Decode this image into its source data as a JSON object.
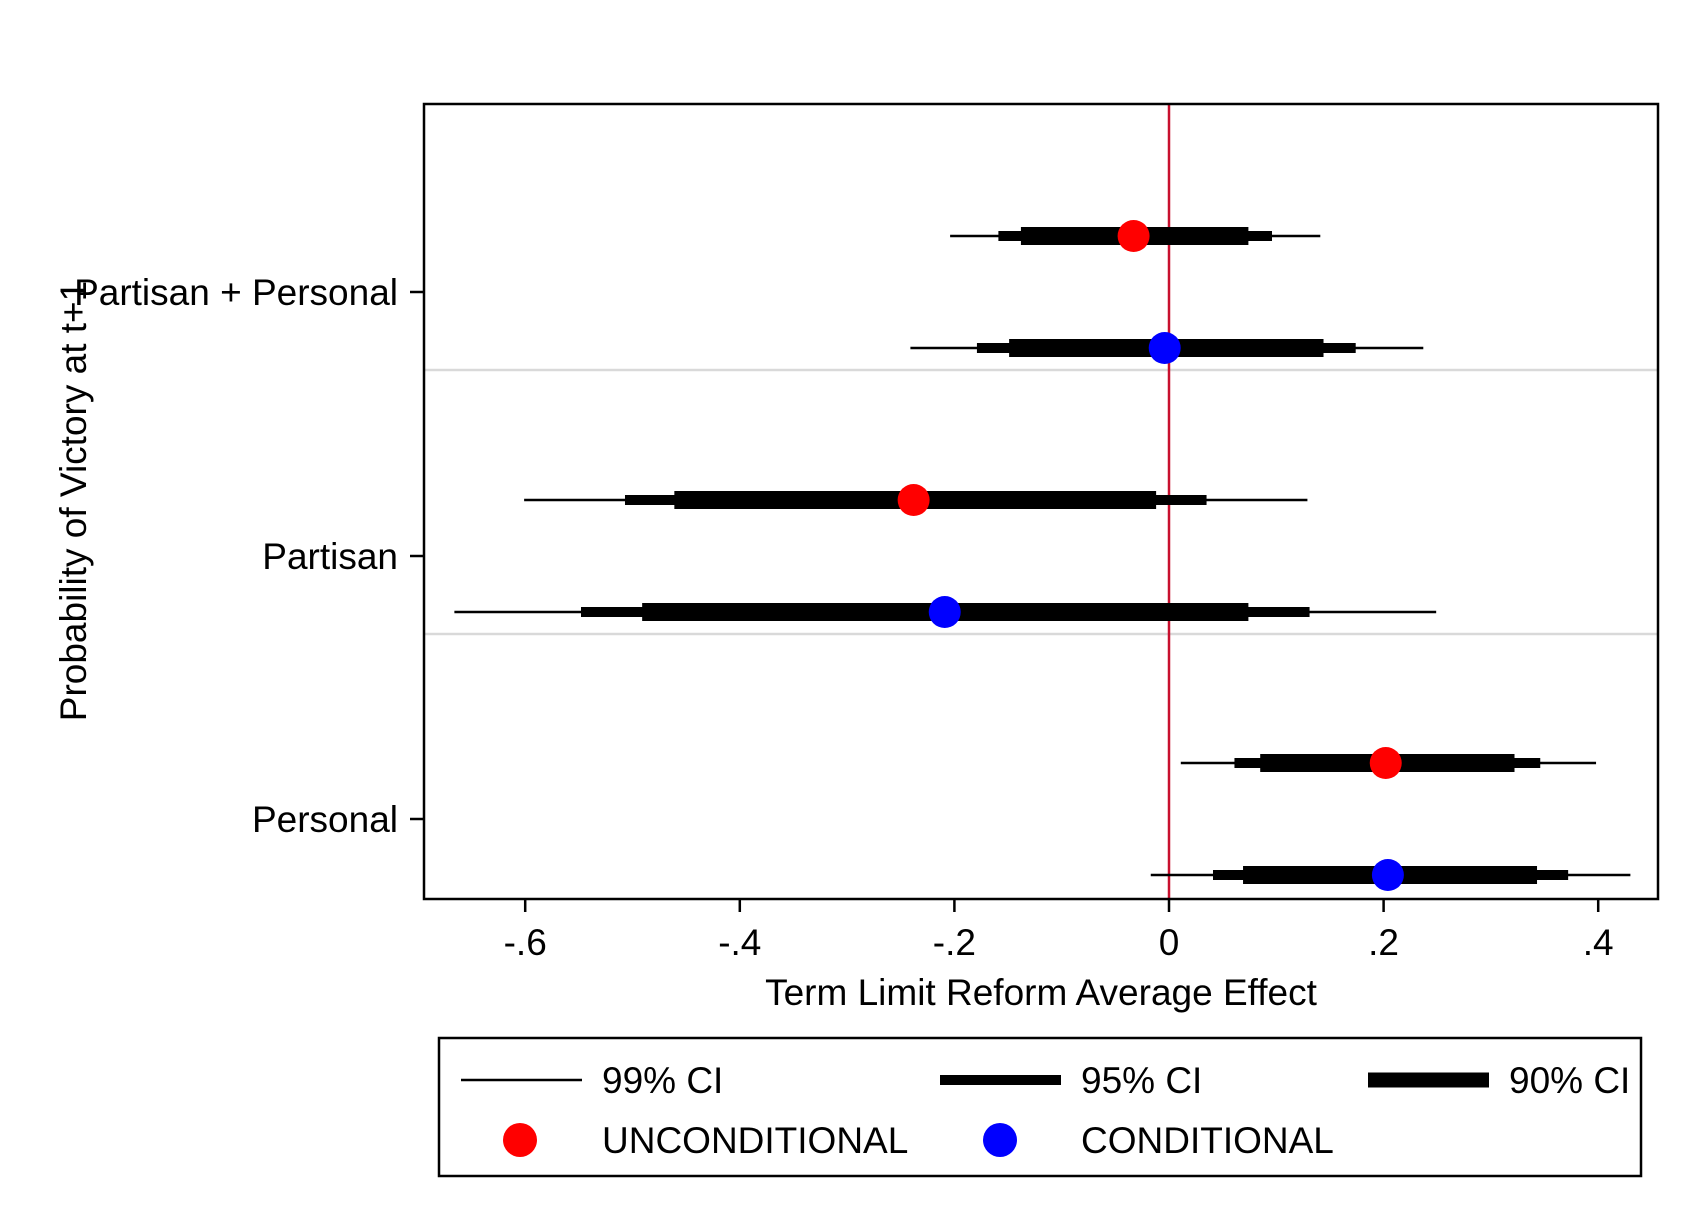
{
  "chart_data": {
    "type": "coefficient_plot",
    "title": "",
    "xlabel": "Term Limit Reform Average Effect",
    "ylabel": "Probability of Victory at t+1",
    "xlim": [
      -0.69,
      0.46
    ],
    "xticks": [
      -0.6,
      -0.4,
      -0.2,
      0,
      0.2,
      0.4
    ],
    "xtick_labels": [
      "-.6",
      "-.4",
      "-.2",
      "0",
      ".2",
      ".4"
    ],
    "reference_line": {
      "x": 0,
      "color": "#c8102e"
    },
    "groups": [
      "Partisan + Personal",
      "Partisan",
      "Personal"
    ],
    "series": [
      {
        "name": "UNCONDITIONAL",
        "color": "#ff0000",
        "estimates": [
          {
            "group": "Partisan + Personal",
            "point": -0.033,
            "ci90": [
              -0.138,
              0.074
            ],
            "ci95": [
              -0.159,
              0.096
            ],
            "ci99": [
              -0.204,
              0.141
            ]
          },
          {
            "group": "Partisan",
            "point": -0.238,
            "ci90": [
              -0.461,
              -0.012
            ],
            "ci95": [
              -0.507,
              0.035
            ],
            "ci99": [
              -0.601,
              0.129
            ]
          },
          {
            "group": "Personal",
            "point": 0.202,
            "ci90": [
              0.085,
              0.322
            ],
            "ci95": [
              0.061,
              0.346
            ],
            "ci99": [
              0.011,
              0.398
            ]
          }
        ]
      },
      {
        "name": "CONDITIONAL",
        "color": "#0000ff",
        "estimates": [
          {
            "group": "Partisan + Personal",
            "point": -0.004,
            "ci90": [
              -0.149,
              0.144
            ],
            "ci95": [
              -0.179,
              0.174
            ],
            "ci99": [
              -0.241,
              0.237
            ]
          },
          {
            "group": "Partisan",
            "point": -0.209,
            "ci90": [
              -0.491,
              0.074
            ],
            "ci95": [
              -0.548,
              0.131
            ],
            "ci99": [
              -0.666,
              0.249
            ]
          },
          {
            "group": "Personal",
            "point": 0.204,
            "ci90": [
              0.069,
              0.343
            ],
            "ci95": [
              0.041,
              0.372
            ],
            "ci99": [
              -0.017,
              0.43
            ]
          }
        ]
      }
    ],
    "legend": {
      "placement": "bottom",
      "entries": [
        {
          "label": "99% CI",
          "kind": "line-thin"
        },
        {
          "label": "95% CI",
          "kind": "line-medium"
        },
        {
          "label": "90% CI",
          "kind": "line-thick"
        },
        {
          "label": "UNCONDITIONAL",
          "kind": "marker",
          "color": "#ff0000"
        },
        {
          "label": "CONDITIONAL",
          "kind": "marker",
          "color": "#0000ff"
        }
      ]
    }
  }
}
